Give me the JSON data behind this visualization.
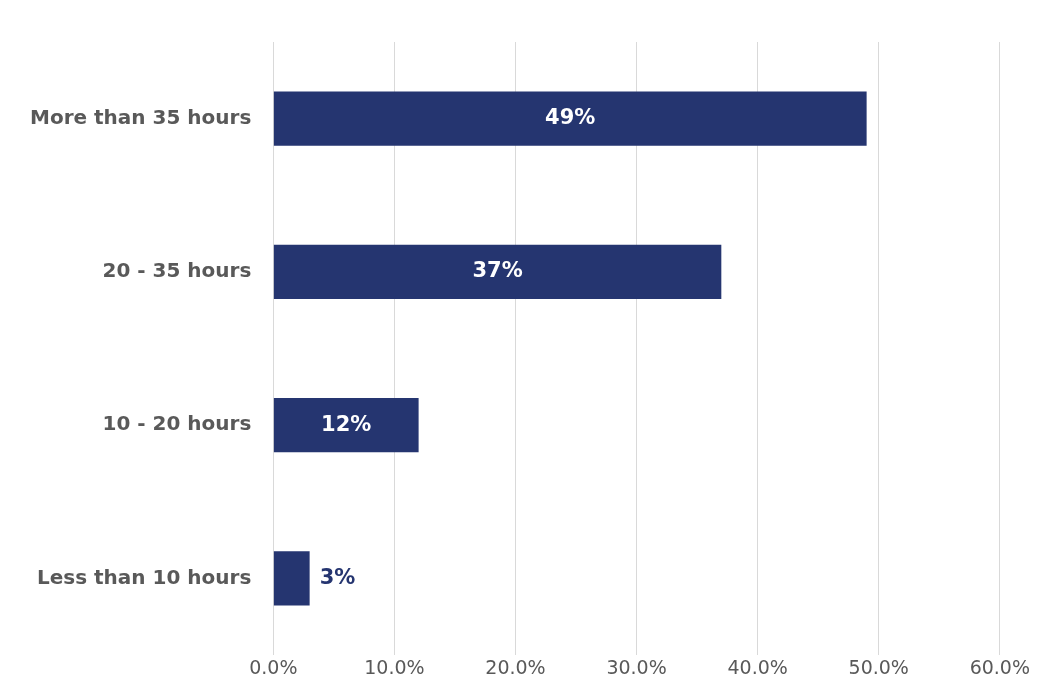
{
  "chart_data": {
    "type": "bar",
    "orientation": "horizontal",
    "categories": [
      "More than 35 hours",
      "20 - 35 hours",
      "10 - 20 hours",
      "Less than 10 hours"
    ],
    "values": [
      49,
      37,
      12,
      3
    ],
    "value_labels": [
      "49%",
      "37%",
      "12%",
      "3%"
    ],
    "color": "#253570",
    "xlim": [
      0,
      60
    ],
    "xticks": [
      {
        "value": 0,
        "label": "0.0%"
      },
      {
        "value": 10,
        "label": "10.0%"
      },
      {
        "value": 20,
        "label": "20.0%"
      },
      {
        "value": 30,
        "label": "30.0%"
      },
      {
        "value": 40,
        "label": "40.0%"
      },
      {
        "value": 50,
        "label": "50.0%"
      },
      {
        "value": 60,
        "label": "60.0%"
      }
    ],
    "grid": "x",
    "legend": false
  }
}
